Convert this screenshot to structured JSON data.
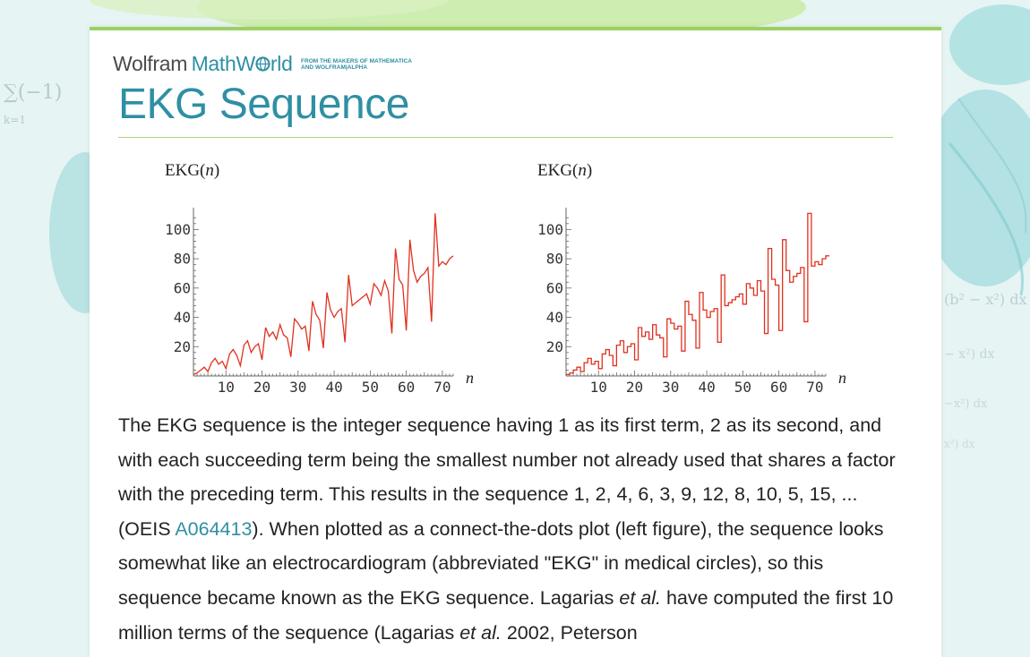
{
  "logo": {
    "brand_wolfram": "Wolfram",
    "brand_mathworld_prefix": "MathW",
    "brand_mathworld_suffix": "rld",
    "tagline_line1": "FROM THE MAKERS OF MATHEMATICA",
    "tagline_line2": "AND WOLFRAM|ALPHA"
  },
  "page": {
    "title": "EKG Sequence"
  },
  "colors": {
    "accent": "#2f8fa3",
    "rule": "#a9d57a",
    "plot_line": "#e0311f",
    "header_bar": "#9bd160"
  },
  "chart_data": [
    {
      "type": "line",
      "style": "connect-the-dots",
      "title_prefix": "EKG(",
      "title_var": "n",
      "title_suffix": ")",
      "xlabel": "n",
      "xticks": [
        10,
        20,
        30,
        40,
        50,
        60,
        70
      ],
      "yticks": [
        20,
        40,
        60,
        80,
        100
      ],
      "xlim": [
        1,
        73
      ],
      "ylim": [
        0,
        110
      ],
      "grid": false
    },
    {
      "type": "line",
      "style": "step",
      "title_prefix": "EKG(",
      "title_var": "n",
      "title_suffix": ")",
      "xlabel": "n",
      "xticks": [
        10,
        20,
        30,
        40,
        50,
        60,
        70
      ],
      "yticks": [
        20,
        40,
        60,
        80,
        100
      ],
      "xlim": [
        1,
        73
      ],
      "ylim": [
        0,
        110
      ],
      "grid": false
    }
  ],
  "sequence": [
    1,
    2,
    4,
    6,
    3,
    9,
    12,
    8,
    10,
    5,
    15,
    18,
    14,
    7,
    21,
    24,
    16,
    20,
    22,
    11,
    33,
    27,
    30,
    25,
    35,
    28,
    26,
    13,
    39,
    36,
    32,
    34,
    17,
    51,
    42,
    38,
    19,
    57,
    45,
    40,
    44,
    46,
    23,
    69,
    48,
    50,
    52,
    54,
    56,
    49,
    63,
    60,
    55,
    65,
    58,
    29,
    87,
    66,
    62,
    31,
    93,
    72,
    64,
    68,
    70,
    74,
    37,
    111,
    75,
    78,
    76,
    80,
    82
  ],
  "description": {
    "part1": "The EKG sequence is the integer sequence having 1 as its first term, 2 as its second, and with each succeeding term being the smallest number not already used that shares a factor with the preceding term. This results in the sequence 1, 2, 4, 6, 3, 9, 12, 8, 10, 5, 15, ... (OEIS ",
    "link": "A064413",
    "part2": "). When plotted as a connect-the-dots plot (left figure), the sequence looks somewhat like an electrocardiogram (abbreviated \"EKG\" in medical circles), so this sequence became known as the EKG sequence. Lagarias ",
    "etal1": "et al.",
    "part3": " have computed the first 10 million terms of the sequence (Lagarias ",
    "etal2": "et al.",
    "part4": " 2002, Peterson"
  }
}
